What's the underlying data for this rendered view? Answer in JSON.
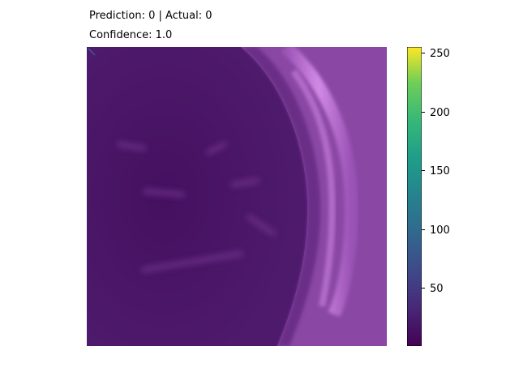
{
  "titles": {
    "line1": "Prediction: 0 | Actual: 0",
    "line2": "Confidence: 1.0"
  },
  "image": {
    "description_icon": "ct-scan-heatmap",
    "colormap": "viridis-like (purple to yellow)",
    "colors": {
      "background": "#4b1669",
      "dark": "#3d0d59",
      "bright_rim": "#c874e0",
      "outer": "#8c4aa6"
    }
  },
  "colorbar": {
    "min": 0,
    "max": 255,
    "ticks": [
      "50",
      "100",
      "150",
      "200",
      "250"
    ]
  }
}
